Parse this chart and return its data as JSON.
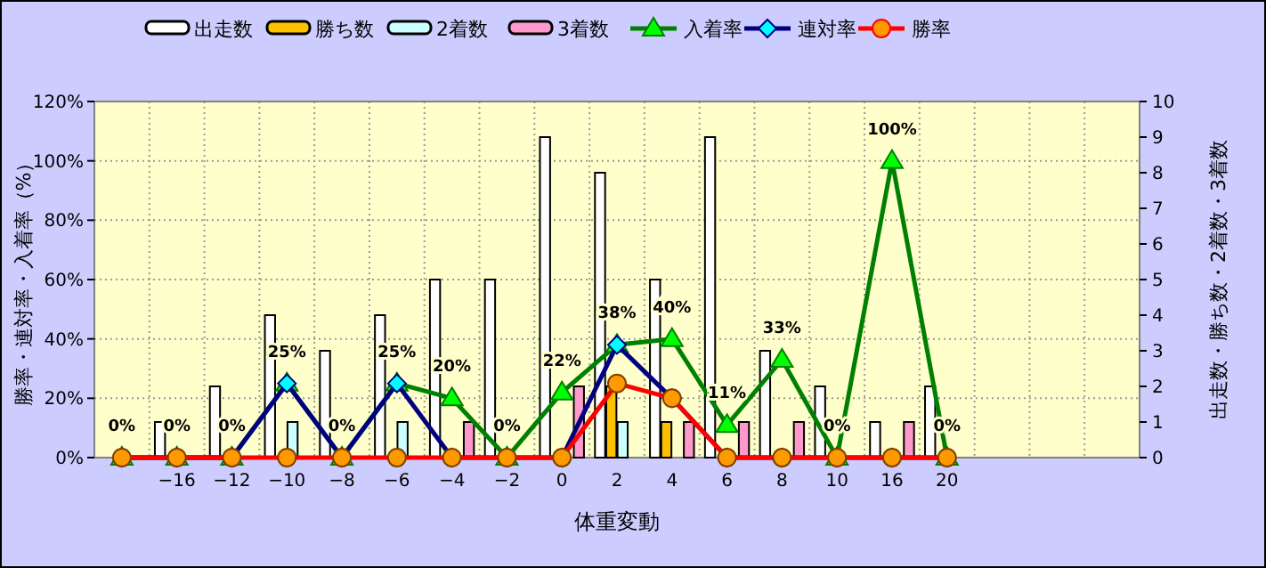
{
  "chart_data": {
    "type": "bar",
    "xlabel": "体重変動",
    "ylabel": "勝率・連対率・入着率（%）",
    "y2label": "出走数・勝ち数・2着数・3着数",
    "categories": [
      null,
      "−16",
      "−12",
      "−10",
      "−8",
      "−6",
      "−4",
      "−2",
      "0",
      "2",
      "4",
      "6",
      "8",
      "10",
      "16",
      "20",
      null,
      null,
      null
    ],
    "series": [
      {
        "name": "出走数",
        "axis": "y2",
        "color": "#ffffff",
        "values": [
          null,
          1,
          2,
          4,
          3,
          4,
          5,
          5,
          9,
          8,
          5,
          9,
          3,
          2,
          1,
          2,
          null,
          null,
          null
        ]
      },
      {
        "name": "勝ち数",
        "axis": "y2",
        "color": "#ffc000",
        "values": [
          null,
          0,
          0,
          0,
          0,
          0,
          0,
          0,
          0,
          2,
          1,
          0,
          0,
          0,
          0,
          0,
          null,
          null,
          null
        ]
      },
      {
        "name": "2着数",
        "axis": "y2",
        "color": "#ccffff",
        "values": [
          null,
          0,
          0,
          1,
          0,
          1,
          0,
          0,
          0,
          1,
          0,
          0,
          0,
          0,
          0,
          0,
          null,
          null,
          null
        ]
      },
      {
        "name": "3着数",
        "axis": "y2",
        "color": "#ff99cc",
        "values": [
          null,
          0,
          0,
          0,
          0,
          0,
          1,
          0,
          2,
          0,
          1,
          1,
          1,
          0,
          1,
          0,
          null,
          null,
          null
        ]
      },
      {
        "name": "入着率",
        "type": "line",
        "color": "#008000",
        "marker": "triangle",
        "values": [
          0,
          0,
          0,
          25,
          0,
          25,
          20,
          0,
          22,
          38,
          40,
          11,
          33,
          0,
          100,
          0,
          null,
          null,
          null
        ],
        "value_labels": [
          "0%",
          "0%",
          "0%",
          "25%",
          "0%",
          "25%",
          "20%",
          "0%",
          "22%",
          "38%",
          "40%",
          "11%",
          "33%",
          "0%",
          "100%",
          "0%",
          null,
          null,
          null
        ]
      },
      {
        "name": "連対率",
        "type": "line",
        "color": "#000080",
        "marker": "diamond",
        "values": [
          0,
          0,
          0,
          25,
          0,
          25,
          0,
          0,
          0,
          38,
          20,
          0,
          0,
          0,
          0,
          0,
          null,
          null,
          null
        ]
      },
      {
        "name": "勝率",
        "type": "line",
        "color": "#ff0000",
        "marker": "circle",
        "values": [
          0,
          0,
          0,
          0,
          0,
          0,
          0,
          0,
          0,
          25,
          20,
          0,
          0,
          0,
          0,
          0,
          null,
          null,
          null
        ]
      }
    ],
    "ylim": [
      0,
      120
    ],
    "yticks": [
      {
        "value": 0,
        "label": "0%"
      },
      {
        "value": 20,
        "label": "20%"
      },
      {
        "value": 40,
        "label": "40%"
      },
      {
        "value": 60,
        "label": "60%"
      },
      {
        "value": 80,
        "label": "80%"
      },
      {
        "value": 100,
        "label": "100%"
      },
      {
        "value": 120,
        "label": "120%"
      }
    ],
    "y2lim": [
      0,
      10
    ],
    "y2ticks": [
      0,
      1,
      2,
      3,
      4,
      5,
      6,
      7,
      8,
      9,
      10
    ],
    "grid": true,
    "legend": "top"
  }
}
